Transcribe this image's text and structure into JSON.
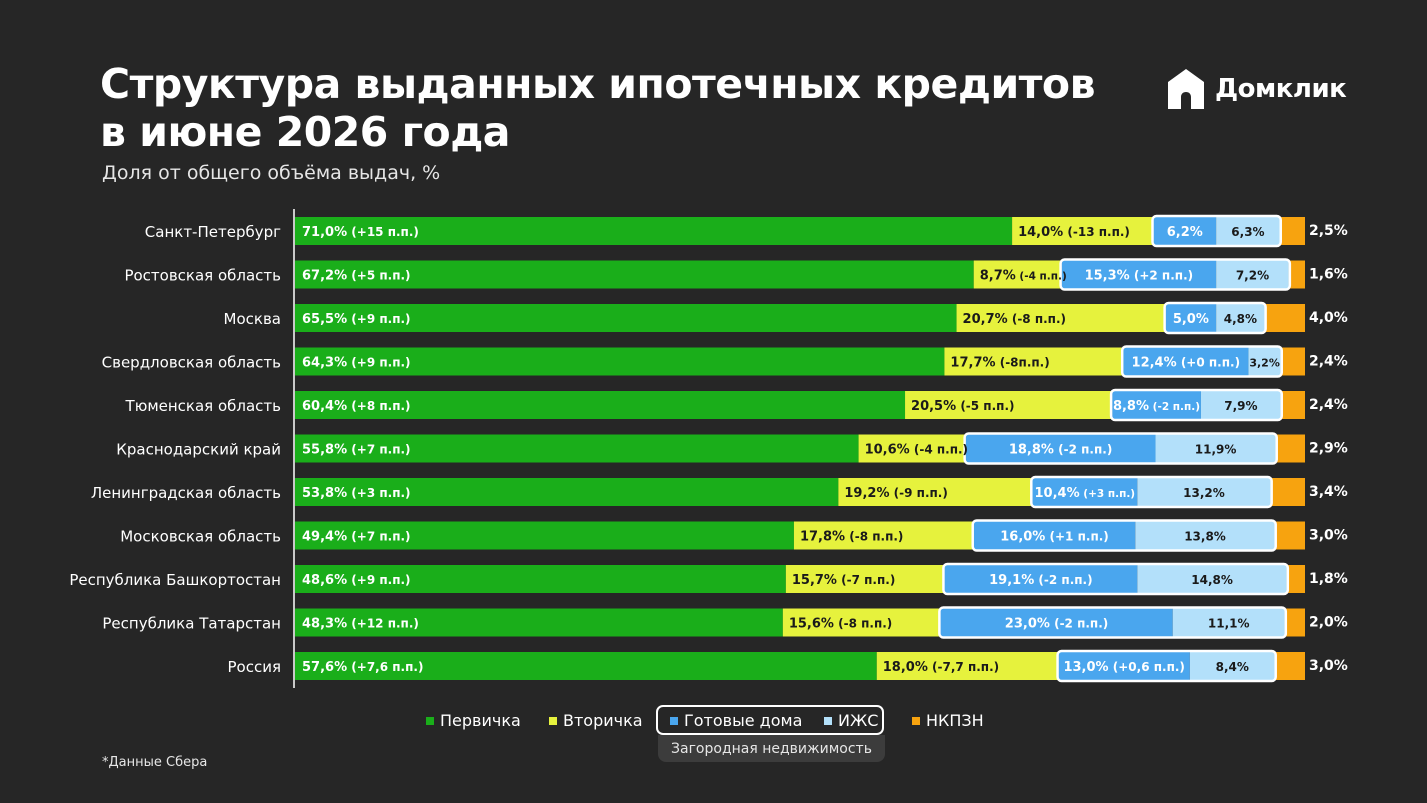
{
  "header": {
    "title_line1": "Структура выданных ипотечных кредитов",
    "title_line2": "в июне 2026 года",
    "subtitle": "Доля от общего объёма выдач, %",
    "logo_text": "Домклик",
    "logo_icon": "house-logo-icon"
  },
  "footnote": "*Данные Сбера",
  "colors": {
    "primary": "#1aae1a",
    "secondary": "#e6f23d",
    "ready_houses": "#4aa6ee",
    "izhs": "#b3e0fa",
    "nkpzn": "#f7a30f",
    "background": "#262626"
  },
  "legend": {
    "items": [
      {
        "key": "primary",
        "label": "Первичка"
      },
      {
        "key": "secondary",
        "label": "Вторичка"
      },
      {
        "key": "ready_houses",
        "label": "Готовые дома"
      },
      {
        "key": "izhs",
        "label": "ИЖС"
      },
      {
        "key": "nkpzn",
        "label": "НКПЗН"
      }
    ],
    "group_label": "Загородная недвижимость"
  },
  "chart_data": {
    "type": "bar",
    "orientation": "horizontal",
    "stacked": true,
    "xlim": [
      0,
      100
    ],
    "grid": false,
    "legend_position": "bottom",
    "categories": [
      "Санкт-Петербург",
      "Ростовская область",
      "Москва",
      "Свердловская область",
      "Тюменская область",
      "Краснодарский край",
      "Ленинградская область",
      "Московская область",
      "Республика Башкортостан",
      "Республика Татарстан",
      "Россия"
    ],
    "series": [
      {
        "key": "primary",
        "name": "Первичка",
        "values": [
          71.0,
          67.2,
          65.5,
          64.3,
          60.4,
          55.8,
          53.8,
          49.4,
          48.6,
          48.3,
          57.6
        ],
        "labels": [
          "71,0%",
          "67,2%",
          "65,5%",
          "64,3%",
          "60,4%",
          "55,8%",
          "53,8%",
          "49,4%",
          "48,6%",
          "48,3%",
          "57,6%"
        ],
        "changes": [
          "(+15 п.п.)",
          "(+5 п.п.)",
          "(+9 п.п.)",
          "(+9 п.п.)",
          "(+8 п.п.)",
          "(+7 п.п.)",
          "(+3 п.п.)",
          "(+7 п.п.)",
          "(+9 п.п.)",
          "(+12 п.п.)",
          "(+7,6 п.п.)"
        ]
      },
      {
        "key": "secondary",
        "name": "Вторичка",
        "values": [
          14.0,
          8.7,
          20.7,
          17.7,
          20.5,
          10.6,
          19.2,
          17.8,
          15.7,
          15.6,
          18.0
        ],
        "labels": [
          "14,0%",
          "8,7%",
          "20,7%",
          "17,7%",
          "20,5%",
          "10,6%",
          "19,2%",
          "17,8%",
          "15,7%",
          "15,6%",
          "18,0%"
        ],
        "changes": [
          "(-13 п.п.)",
          "(-4 п.п.)",
          "(-8 п.п.)",
          "(-8п.п.)",
          "(-5 п.п.)",
          "(-4 п.п.)",
          "(-9 п.п.)",
          "(-8 п.п.)",
          "(-7 п.п.)",
          "(-8 п.п.)",
          "(-7,7 п.п.)"
        ]
      },
      {
        "key": "ready_houses",
        "name": "Готовые дома",
        "values": [
          6.2,
          15.3,
          5.0,
          12.4,
          8.8,
          18.8,
          10.4,
          16.0,
          19.1,
          23.0,
          13.0
        ],
        "labels": [
          "6,2%",
          "15,3%",
          "5,0%",
          "12,4%",
          "8,8%",
          "18,8%",
          "10,4%",
          "16,0%",
          "19,1%",
          "23,0%",
          "13,0%"
        ],
        "changes": [
          "",
          "(+2 п.п.)",
          "",
          "(+0 п.п.)",
          "(-2 п.п.)",
          "(-2 п.п.)",
          "(+3 п.п.)",
          "(+1 п.п.)",
          "(-2 п.п.)",
          "(-2 п.п.)",
          "(+0,6 п.п.)"
        ]
      },
      {
        "key": "izhs",
        "name": "ИЖС",
        "values": [
          6.3,
          7.2,
          4.8,
          3.2,
          7.9,
          11.9,
          13.2,
          13.8,
          14.8,
          11.1,
          8.4
        ],
        "labels": [
          "6,3%",
          "7,2%",
          "4,8%",
          "3,2%",
          "7,9%",
          "11,9%",
          "13,2%",
          "13,8%",
          "14,8%",
          "11,1%",
          "8,4%"
        ]
      },
      {
        "key": "nkpzn",
        "name": "НКПЗН",
        "values": [
          2.5,
          1.6,
          4.0,
          2.4,
          2.4,
          2.9,
          3.4,
          3.0,
          1.8,
          2.0,
          3.0
        ],
        "labels": [
          "2,5%",
          "1,6%",
          "4,0%",
          "2,4%",
          "2,4%",
          "2,9%",
          "3,4%",
          "3,0%",
          "1,8%",
          "2,0%",
          "3,0%"
        ]
      }
    ]
  }
}
